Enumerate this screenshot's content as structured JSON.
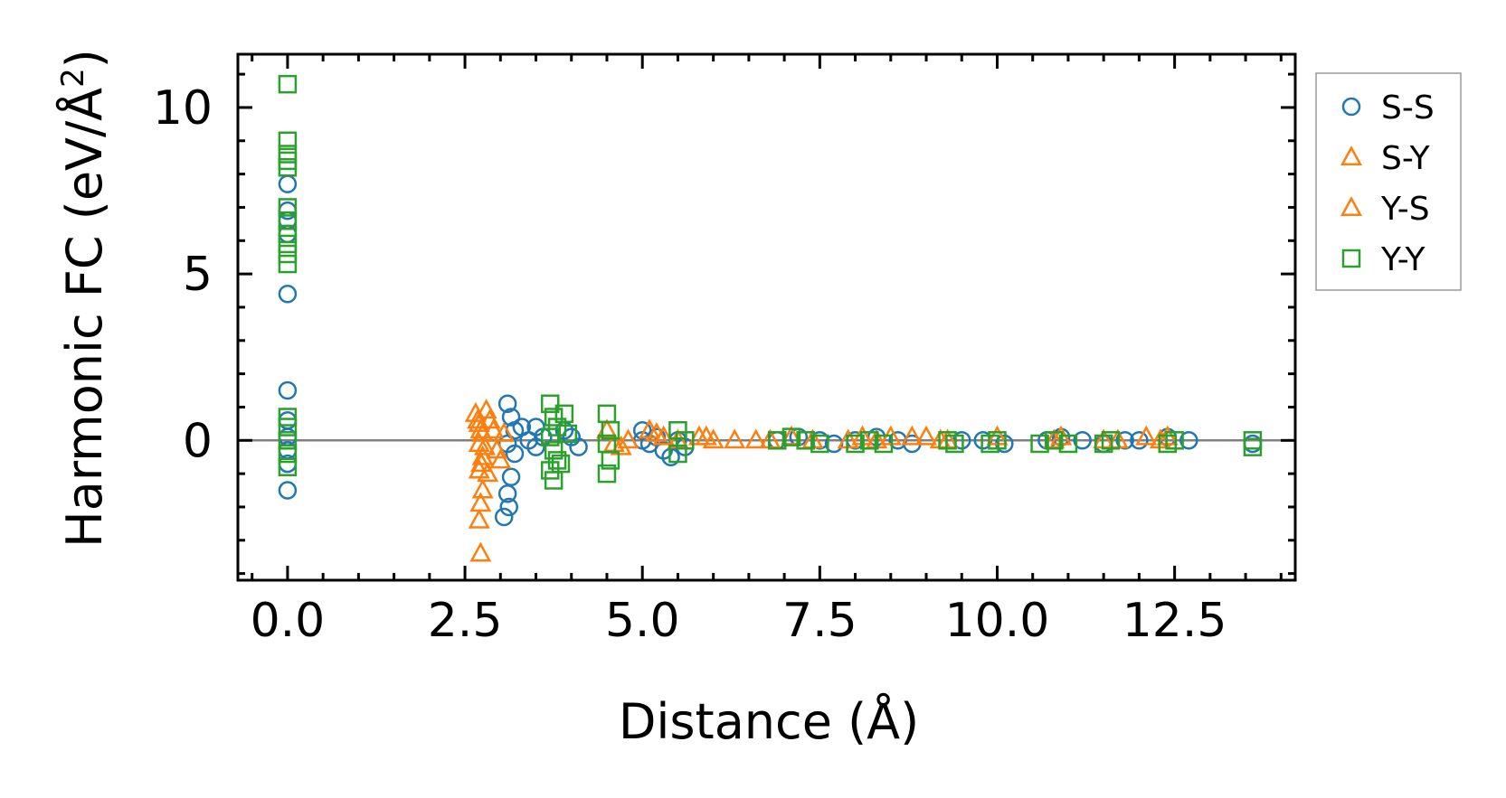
{
  "chart_data": {
    "type": "scatter",
    "xlabel": "Distance (Å)",
    "ylabel_main": "Harmonic FC (eV/Å",
    "ylabel_sup": "2",
    "ylabel_close": ")",
    "xlim": [
      -0.7,
      14.2
    ],
    "ylim": [
      -4.2,
      11.6
    ],
    "x_ticks": [
      0.0,
      2.5,
      5.0,
      7.5,
      10.0,
      12.5
    ],
    "x_tick_labels": [
      "0.0",
      "2.5",
      "5.0",
      "7.5",
      "10.0",
      "12.5"
    ],
    "y_ticks": [
      0,
      5,
      10
    ],
    "y_tick_labels": [
      "0",
      "5",
      "10"
    ],
    "zero_line": true,
    "legend_position": "outside-right-top",
    "series": [
      {
        "name": "S-S",
        "marker": "circle",
        "color": "#1f77b4",
        "points": [
          [
            0,
            7.7
          ],
          [
            0,
            6.9
          ],
          [
            0,
            6.6
          ],
          [
            0,
            6.2
          ],
          [
            0,
            4.4
          ],
          [
            0,
            1.5
          ],
          [
            0,
            0.6
          ],
          [
            0,
            0.1
          ],
          [
            0,
            -0.3
          ],
          [
            0,
            -0.7
          ],
          [
            0,
            -1.5
          ],
          [
            3.1,
            1.1
          ],
          [
            3.15,
            0.7
          ],
          [
            3.2,
            0.3
          ],
          [
            3.1,
            -0.1
          ],
          [
            3.2,
            -0.4
          ],
          [
            3.15,
            -1.1
          ],
          [
            3.1,
            -1.6
          ],
          [
            3.12,
            -2.0
          ],
          [
            3.05,
            -2.3
          ],
          [
            3.3,
            0.4
          ],
          [
            3.4,
            0.0
          ],
          [
            3.5,
            0.4
          ],
          [
            3.5,
            -0.2
          ],
          [
            3.6,
            0.1
          ],
          [
            3.9,
            0.3
          ],
          [
            4.0,
            0.1
          ],
          [
            4.1,
            -0.2
          ],
          [
            5.0,
            0.3
          ],
          [
            5.0,
            0.0
          ],
          [
            5.1,
            -0.1
          ],
          [
            5.2,
            0.1
          ],
          [
            5.3,
            -0.3
          ],
          [
            5.4,
            -0.5
          ],
          [
            5.5,
            0.0
          ],
          [
            5.6,
            -0.2
          ],
          [
            6.9,
            0.0
          ],
          [
            7.2,
            0.1
          ],
          [
            7.5,
            0.0
          ],
          [
            7.7,
            -0.1
          ],
          [
            8.0,
            0.0
          ],
          [
            8.3,
            0.1
          ],
          [
            8.6,
            0.0
          ],
          [
            8.8,
            -0.1
          ],
          [
            9.5,
            0.0
          ],
          [
            9.8,
            0.0
          ],
          [
            10.1,
            -0.1
          ],
          [
            10.7,
            0.0
          ],
          [
            10.9,
            0.1
          ],
          [
            11.2,
            0.0
          ],
          [
            11.5,
            -0.1
          ],
          [
            11.8,
            0.0
          ],
          [
            12.0,
            0.0
          ],
          [
            12.4,
            0.1
          ],
          [
            12.7,
            0.0
          ],
          [
            13.6,
            -0.1
          ]
        ]
      },
      {
        "name": "S-Y",
        "marker": "triangle",
        "color": "#ff7f0e",
        "points": [
          [
            2.65,
            0.8
          ],
          [
            2.7,
            0.5
          ],
          [
            2.75,
            0.2
          ],
          [
            2.7,
            -0.1
          ],
          [
            2.75,
            -0.5
          ],
          [
            2.7,
            -0.9
          ],
          [
            2.75,
            -1.5
          ],
          [
            2.72,
            -1.9
          ],
          [
            2.7,
            -2.4
          ],
          [
            2.72,
            -3.4
          ],
          [
            2.85,
            0.6
          ],
          [
            2.9,
            0.3
          ],
          [
            2.95,
            -0.3
          ],
          [
            3.0,
            -0.6
          ],
          [
            4.5,
            0.3
          ],
          [
            4.6,
            -0.1
          ],
          [
            4.8,
            0.0
          ],
          [
            5.1,
            0.3
          ],
          [
            5.3,
            0.1
          ],
          [
            5.5,
            0.0
          ],
          [
            5.8,
            0.1
          ],
          [
            6.0,
            0.0
          ],
          [
            6.3,
            0.0
          ],
          [
            7.1,
            0.1
          ],
          [
            7.4,
            0.0
          ],
          [
            8.1,
            0.1
          ],
          [
            8.3,
            0.0
          ],
          [
            8.5,
            0.1
          ],
          [
            9.0,
            0.1
          ],
          [
            9.2,
            0.0
          ],
          [
            10.0,
            0.1
          ],
          [
            10.8,
            0.0
          ],
          [
            11.5,
            0.0
          ],
          [
            12.1,
            0.1
          ],
          [
            12.3,
            0.0
          ]
        ]
      },
      {
        "name": "Y-S",
        "marker": "triangle",
        "color": "#ff7f0e",
        "points": [
          [
            2.68,
            0.6
          ],
          [
            2.72,
            0.3
          ],
          [
            2.78,
            -0.2
          ],
          [
            2.73,
            -0.7
          ],
          [
            2.8,
            0.9
          ],
          [
            2.82,
            -1.0
          ],
          [
            3.05,
            0.2
          ],
          [
            4.7,
            -0.2
          ],
          [
            5.2,
            0.2
          ],
          [
            5.9,
            0.1
          ],
          [
            6.6,
            0.0
          ],
          [
            6.8,
            0.0
          ],
          [
            7.9,
            0.0
          ],
          [
            8.8,
            0.1
          ],
          [
            9.3,
            0.0
          ],
          [
            10.9,
            0.1
          ],
          [
            11.7,
            0.0
          ],
          [
            12.4,
            0.1
          ]
        ]
      },
      {
        "name": "Y-Y",
        "marker": "square",
        "color": "#2ca02c",
        "points": [
          [
            0,
            10.7
          ],
          [
            0,
            9.0
          ],
          [
            0,
            8.6
          ],
          [
            0,
            8.4
          ],
          [
            0,
            8.2
          ],
          [
            0,
            7.0
          ],
          [
            0,
            6.6
          ],
          [
            0,
            6.2
          ],
          [
            0,
            5.9
          ],
          [
            0,
            5.6
          ],
          [
            0,
            5.3
          ],
          [
            0,
            0.7
          ],
          [
            0,
            0.4
          ],
          [
            0,
            0.0
          ],
          [
            0,
            -0.4
          ],
          [
            0,
            -0.8
          ],
          [
            3.7,
            1.1
          ],
          [
            3.75,
            0.7
          ],
          [
            3.8,
            0.4
          ],
          [
            3.7,
            0.1
          ],
          [
            3.75,
            -0.3
          ],
          [
            3.8,
            -0.6
          ],
          [
            3.7,
            -0.9
          ],
          [
            3.75,
            -1.2
          ],
          [
            3.9,
            0.8
          ],
          [
            3.95,
            0.2
          ],
          [
            3.85,
            -0.7
          ],
          [
            4.5,
            0.8
          ],
          [
            4.55,
            0.3
          ],
          [
            4.5,
            -0.1
          ],
          [
            4.55,
            -0.6
          ],
          [
            4.5,
            -1.0
          ],
          [
            5.5,
            0.3
          ],
          [
            5.6,
            0.0
          ],
          [
            5.5,
            -0.4
          ],
          [
            6.9,
            0.0
          ],
          [
            7.1,
            0.1
          ],
          [
            7.3,
            0.0
          ],
          [
            7.5,
            -0.1
          ],
          [
            8.0,
            -0.1
          ],
          [
            8.2,
            0.0
          ],
          [
            8.4,
            -0.1
          ],
          [
            9.3,
            0.0
          ],
          [
            9.4,
            -0.1
          ],
          [
            9.9,
            -0.1
          ],
          [
            10.0,
            0.0
          ],
          [
            10.6,
            -0.1
          ],
          [
            10.8,
            0.0
          ],
          [
            11.0,
            -0.1
          ],
          [
            11.5,
            -0.1
          ],
          [
            11.6,
            0.0
          ],
          [
            12.4,
            -0.1
          ],
          [
            12.5,
            0.0
          ],
          [
            13.6,
            0.0
          ],
          [
            13.6,
            -0.2
          ]
        ]
      }
    ],
    "legend": [
      {
        "label": "S-S",
        "marker": "circle",
        "color": "#1f77b4"
      },
      {
        "label": "S-Y",
        "marker": "triangle",
        "color": "#ff7f0e"
      },
      {
        "label": "Y-S",
        "marker": "triangle",
        "color": "#ff7f0e"
      },
      {
        "label": "Y-Y",
        "marker": "square",
        "color": "#2ca02c"
      }
    ]
  }
}
